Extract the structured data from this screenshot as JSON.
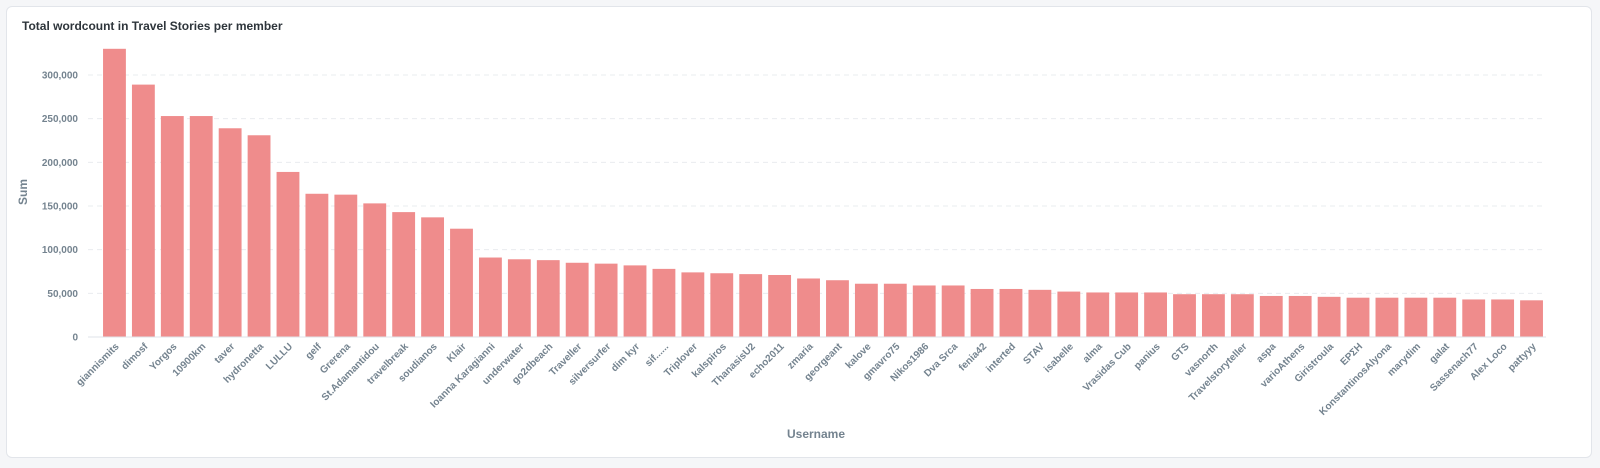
{
  "card": {
    "title": "Total wordcount in Travel Stories per member"
  },
  "chart_data": {
    "type": "bar",
    "title": "Total wordcount in Travel Stories per member",
    "xlabel": "Username",
    "ylabel": "Sum",
    "ylim": [
      0,
      340000
    ],
    "yticks": [
      0,
      50000,
      100000,
      150000,
      200000,
      250000,
      300000
    ],
    "ytick_labels": [
      "0",
      "50,000",
      "100,000",
      "150,000",
      "200,000",
      "250,000",
      "300,000"
    ],
    "grid": true,
    "bar_color": "#ef8c8c",
    "categories": [
      "giannismits",
      "dimosf",
      "Yorgos",
      "10900km",
      "taver",
      "hydronetta",
      "LULLU",
      "gelf",
      "Grerena",
      "St.Adamantidou",
      "travelbreak",
      "soudianos",
      "Klair",
      "Ioanna Karagianni",
      "underwater",
      "go2dbeach",
      "Traveller",
      "silversurfer",
      "dim kyr",
      "sif......",
      "Triplover",
      "kalspiros",
      "ThanasisU2",
      "echo2011",
      "zmaria",
      "georgeant",
      "kalove",
      "gmavro75",
      "Nikos1986",
      "Dva Srca",
      "fenia42",
      "interted",
      "STAV",
      "isabelle",
      "alma",
      "Vrasidas Cub",
      "panius",
      "GTS",
      "vasnorth",
      "Travelstoryteller",
      "aspa",
      "varioAthens",
      "Giristroula",
      "ΕΡΣΗ",
      "KonstantinosAlyona",
      "marydim",
      "galat",
      "Sassenach77",
      "Alex Loco",
      "pattyyy"
    ],
    "values": [
      330000,
      289000,
      253000,
      253000,
      239000,
      231000,
      189000,
      164000,
      163000,
      153000,
      143000,
      137000,
      124000,
      91000,
      89000,
      88000,
      85000,
      84000,
      82000,
      78000,
      74000,
      73000,
      72000,
      71000,
      67000,
      65000,
      61000,
      61000,
      59000,
      59000,
      55000,
      55000,
      54000,
      52000,
      51000,
      51000,
      51000,
      49000,
      49000,
      49000,
      47000,
      47000,
      46000,
      45000,
      45000,
      45000,
      45000,
      43000,
      43000,
      42000
    ]
  }
}
